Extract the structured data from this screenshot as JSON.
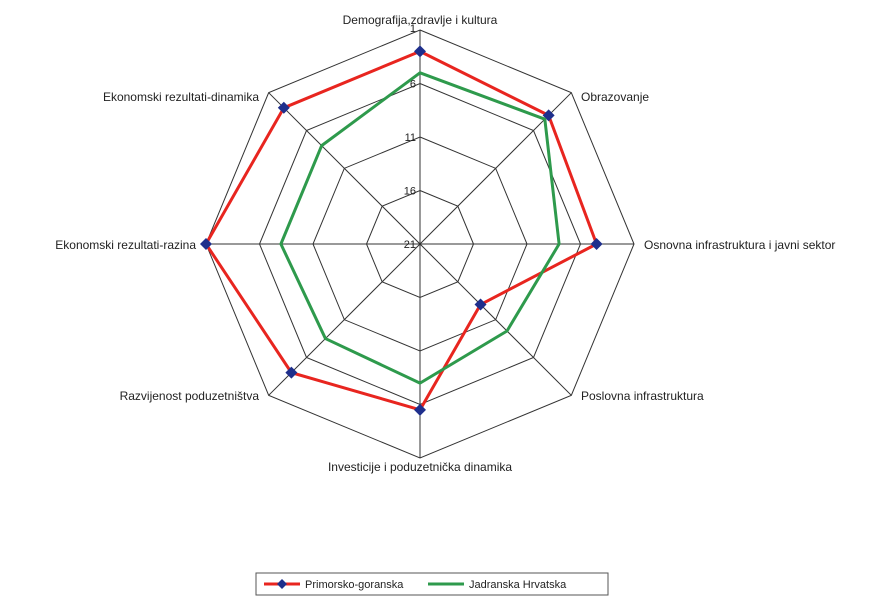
{
  "chart_data": {
    "type": "radar",
    "title": "",
    "axes": [
      "Demografija,zdravlje i kultura",
      "Obrazovanje",
      "Osnovna infrastruktura i javni sektor",
      "Poslovna infrastruktura",
      "Investicije i poduzetnička dinamika",
      "Razvijenost poduzetništva",
      "Ekonomski rezultati-razina",
      "Ekonomski rezultati-dinamika"
    ],
    "scale": {
      "min": 1,
      "max": 21,
      "reversed": true,
      "ticks": [
        1,
        6,
        11,
        16,
        21
      ]
    },
    "tick_labels": [
      "1",
      "6",
      "11",
      "16",
      "21"
    ],
    "series": [
      {
        "name": "Primorsko-goranska",
        "color": "#e8251f",
        "marker": "diamond",
        "marker_color": "#1f2f8c",
        "values": [
          3,
          4,
          4.5,
          13,
          5.5,
          4,
          1,
          3
        ]
      },
      {
        "name": "Jadranska Hrvatska",
        "color": "#2e9a4c",
        "marker": "none",
        "values": [
          5,
          4.5,
          8,
          9.5,
          8,
          8.5,
          8,
          8
        ]
      }
    ],
    "legend": {
      "position": "bottom-center"
    },
    "grid": true
  }
}
